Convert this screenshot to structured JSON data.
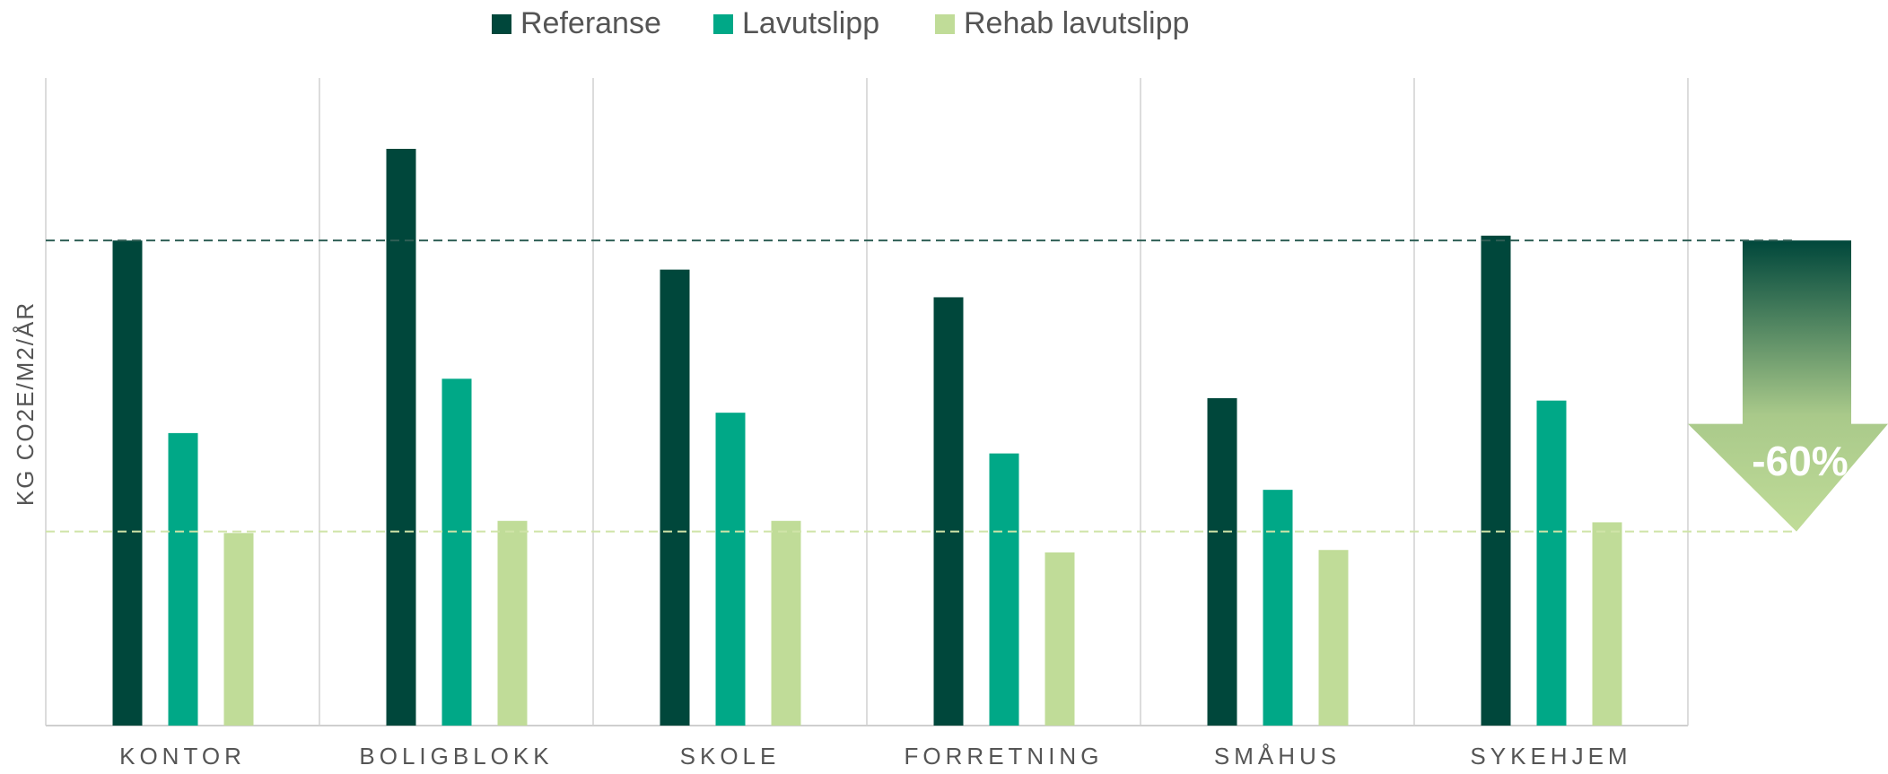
{
  "chart_data": {
    "type": "bar",
    "y_label": "KG CO2E/M2/ÅR",
    "categories": [
      "KONTOR",
      "BOLIGBLOKK",
      "SKOLE",
      "FORRETNING",
      "SMÅHUS",
      "SYKEHJEM"
    ],
    "series": [
      {
        "name": "Referanse",
        "color": "#00473b",
        "values": [
          100,
          118.9,
          94.0,
          88.3,
          67.5,
          101.0
        ]
      },
      {
        "name": "Lavutslipp",
        "color": "#00a887",
        "values": [
          60.3,
          71.5,
          64.5,
          56.1,
          48.6,
          67.0
        ]
      },
      {
        "name": "Rehab lavutslipp",
        "color": "#c0dc98",
        "values": [
          39.7,
          42.2,
          42.2,
          35.7,
          36.2,
          41.9
        ]
      }
    ],
    "ylim": [
      0,
      133.5
    ],
    "reference_lines": [
      100,
      40
    ],
    "annotation": "-60%",
    "legend": "top"
  }
}
